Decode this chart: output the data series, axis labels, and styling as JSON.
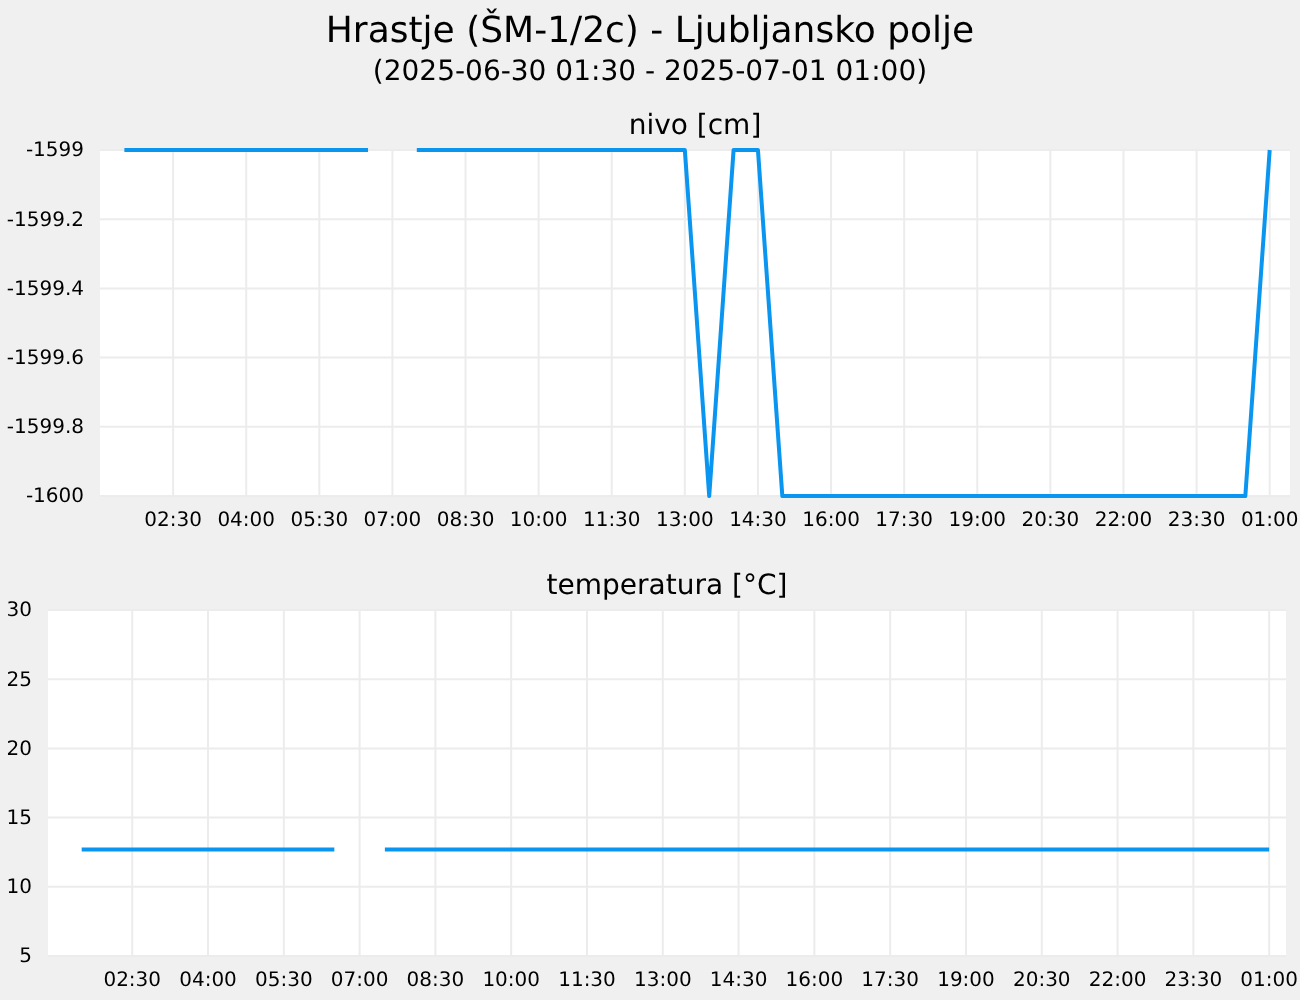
{
  "chart_data": [
    {
      "type": "line",
      "title": "Hrastje (ŠM-1/2c) - Ljubljansko polje",
      "subtitle": "(2025-06-30 01:30 - 2025-07-01 01:00)",
      "ylabel": "nivo [cm]",
      "series": [
        {
          "color": "#0a96f0",
          "x": [
            "2025-06-30T01:30",
            "2025-06-30T06:30",
            "2025-06-30T07:00",
            "2025-06-30T07:30",
            "2025-06-30T13:00",
            "2025-06-30T13:30",
            "2025-06-30T14:00",
            "2025-06-30T14:30",
            "2025-06-30T15:00",
            "2025-07-01T00:30",
            "2025-07-01T01:00"
          ],
          "values": [
            -1599,
            -1599,
            null,
            -1599,
            -1599,
            -1600,
            -1599,
            -1599,
            -1600,
            -1600,
            -1599
          ]
        }
      ],
      "xlim": [
        "2025-06-30T01:00",
        "2025-07-01T01:25"
      ],
      "xticks": [
        {
          "value": "2025-06-30T02:30",
          "label": "02:30"
        },
        {
          "value": "2025-06-30T04:00",
          "label": "04:00"
        },
        {
          "value": "2025-06-30T05:30",
          "label": "05:30"
        },
        {
          "value": "2025-06-30T07:00",
          "label": "07:00"
        },
        {
          "value": "2025-06-30T08:30",
          "label": "08:30"
        },
        {
          "value": "2025-06-30T10:00",
          "label": "10:00"
        },
        {
          "value": "2025-06-30T11:30",
          "label": "11:30"
        },
        {
          "value": "2025-06-30T13:00",
          "label": "13:00"
        },
        {
          "value": "2025-06-30T14:30",
          "label": "14:30"
        },
        {
          "value": "2025-06-30T16:00",
          "label": "16:00"
        },
        {
          "value": "2025-06-30T17:30",
          "label": "17:30"
        },
        {
          "value": "2025-06-30T19:00",
          "label": "19:00"
        },
        {
          "value": "2025-06-30T20:30",
          "label": "20:30"
        },
        {
          "value": "2025-06-30T22:00",
          "label": "22:00"
        },
        {
          "value": "2025-06-30T23:30",
          "label": "23:30"
        },
        {
          "value": "2025-07-01T01:00",
          "label": "01:00"
        }
      ],
      "ylim": [
        -1600,
        -1599
      ],
      "yticks": [
        -1600,
        -1599.8,
        -1599.6,
        -1599.4,
        -1599.2,
        -1599
      ],
      "grid": true,
      "line_style": "solid"
    },
    {
      "type": "line",
      "ylabel": "temperatura [°C]",
      "series": [
        {
          "color": "#0a96f0",
          "x": [
            "2025-06-30T01:30",
            "2025-06-30T06:30",
            "2025-06-30T07:00",
            "2025-06-30T07:30",
            "2025-07-01T01:00"
          ],
          "values": [
            12.7,
            12.7,
            null,
            12.7,
            12.7
          ]
        }
      ],
      "xlim": [
        "2025-06-30T00:50",
        "2025-07-01T01:20"
      ],
      "xticks": [
        {
          "value": "2025-06-30T02:30",
          "label": "02:30"
        },
        {
          "value": "2025-06-30T04:00",
          "label": "04:00"
        },
        {
          "value": "2025-06-30T05:30",
          "label": "05:30"
        },
        {
          "value": "2025-06-30T07:00",
          "label": "07:00"
        },
        {
          "value": "2025-06-30T08:30",
          "label": "08:30"
        },
        {
          "value": "2025-06-30T10:00",
          "label": "10:00"
        },
        {
          "value": "2025-06-30T11:30",
          "label": "11:30"
        },
        {
          "value": "2025-06-30T13:00",
          "label": "13:00"
        },
        {
          "value": "2025-06-30T14:30",
          "label": "14:30"
        },
        {
          "value": "2025-06-30T16:00",
          "label": "16:00"
        },
        {
          "value": "2025-06-30T17:30",
          "label": "17:30"
        },
        {
          "value": "2025-06-30T19:00",
          "label": "19:00"
        },
        {
          "value": "2025-06-30T20:30",
          "label": "20:30"
        },
        {
          "value": "2025-06-30T22:00",
          "label": "22:00"
        },
        {
          "value": "2025-06-30T23:30",
          "label": "23:30"
        },
        {
          "value": "2025-07-01T01:00",
          "label": "01:00"
        }
      ],
      "ylim": [
        5,
        30
      ],
      "yticks": [
        5,
        10,
        15,
        20,
        25,
        30
      ],
      "grid": true,
      "line_style": "solid"
    }
  ]
}
